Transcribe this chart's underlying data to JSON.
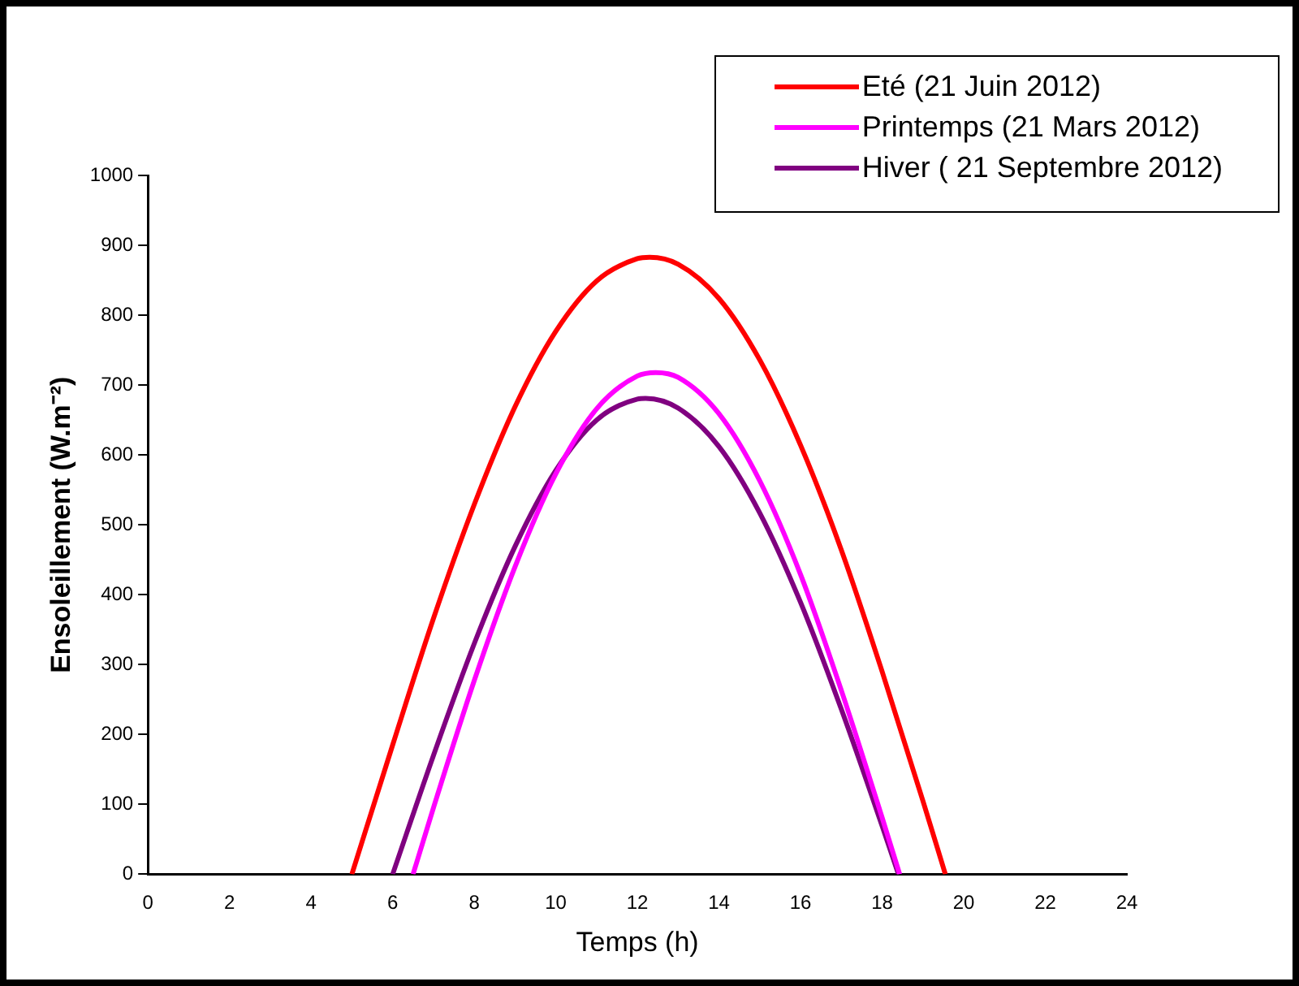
{
  "chart_data": {
    "type": "line",
    "xlabel": "Temps (h)",
    "ylabel": "Ensoleillement (W.m⁻²)",
    "xlim": [
      0,
      24
    ],
    "xticks": [
      0,
      2,
      4,
      6,
      8,
      10,
      12,
      14,
      16,
      18,
      20,
      22,
      24
    ],
    "ylim": [
      0,
      1000
    ],
    "yticks": [
      0,
      100,
      200,
      300,
      400,
      500,
      600,
      700,
      800,
      900,
      1000
    ],
    "grid": false,
    "legend": "top right",
    "marker": "none",
    "line_style": "solid",
    "series": [
      {
        "name": "Eté (21 Juin 2012)",
        "color": "#ff0000",
        "x": [
          5.0,
          6,
          7,
          8,
          9,
          10,
          11,
          12,
          12.3,
          13,
          14,
          15,
          16,
          17,
          18,
          19,
          19.55
        ],
        "values": [
          0,
          185,
          366,
          529,
          669,
          777,
          849,
          881,
          883,
          873,
          824,
          736,
          614,
          464,
          290,
          105,
          0
        ]
      },
      {
        "name": "Printemps (21 Mars 2012)",
        "color": "#ff00ff",
        "x": [
          6.5,
          7,
          8,
          9,
          10,
          11,
          12,
          12.45,
          13,
          14,
          15,
          16,
          17,
          18,
          18.43
        ],
        "values": [
          0,
          95,
          277,
          440,
          573,
          666,
          713,
          718,
          711,
          659,
          563,
          429,
          263,
          81,
          0
        ]
      },
      {
        "name": "Hiver ( 21 Septembre 2012)",
        "color": "#800080",
        "x": [
          6.0,
          7,
          8,
          9,
          10,
          11,
          12,
          12.2,
          13,
          14,
          15,
          16,
          17,
          18,
          18.4
        ],
        "values": [
          0,
          170,
          330,
          469,
          578,
          650,
          680,
          681,
          667,
          612,
          517,
          389,
          236,
          69,
          0
        ]
      }
    ]
  }
}
